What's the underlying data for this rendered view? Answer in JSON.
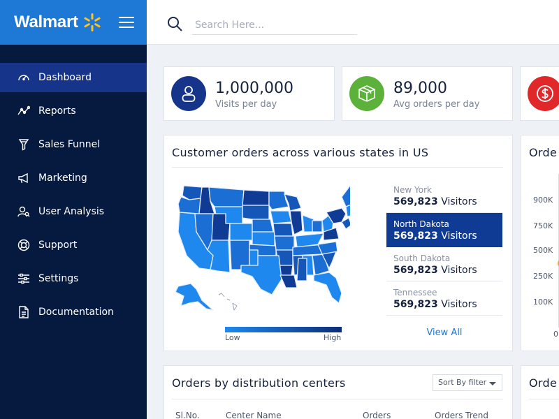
{
  "brand": {
    "name": "Walmart",
    "color": "#1e78d6",
    "spark_color": "#ffc220"
  },
  "search": {
    "placeholder": "Search Here..."
  },
  "nav": [
    {
      "label": "Dashboard",
      "icon": "speedometer-icon",
      "active": true
    },
    {
      "label": "Reports",
      "icon": "trend-line-icon"
    },
    {
      "label": "Sales Funnel",
      "icon": "funnel-icon"
    },
    {
      "label": "Marketing",
      "icon": "megaphone-icon"
    },
    {
      "label": "User Analysis",
      "icon": "user-search-icon"
    },
    {
      "label": "Support",
      "icon": "lifebuoy-icon"
    },
    {
      "label": "Settings",
      "icon": "sliders-icon"
    },
    {
      "label": "Documentation",
      "icon": "document-icon"
    }
  ],
  "stats": [
    {
      "value": "1,000,000",
      "label": "Visits per day",
      "icon": "user-icon",
      "color": "#16358a"
    },
    {
      "value": "89,000",
      "label": "Avg orders per day",
      "icon": "box-icon",
      "color": "#5bb13a"
    },
    {
      "value": "",
      "label": "",
      "icon": "dollar-icon",
      "color": "#e0282b"
    }
  ],
  "map_card": {
    "title": "Customer orders across various states in US",
    "states": [
      {
        "name": "New York",
        "count": "569,823",
        "unit": "Visitors"
      },
      {
        "name": "North Dakota",
        "count": "569,823",
        "unit": "Visitors",
        "active": true
      },
      {
        "name": "South Dakota",
        "count": "569,823",
        "unit": "Visitors"
      },
      {
        "name": "Tennessee",
        "count": "569,823",
        "unit": "Visitors"
      }
    ],
    "view_all": "View All",
    "legend": {
      "low": "Low",
      "high": "High",
      "low_color": "#1e88ee",
      "high_color": "#0c2d78"
    }
  },
  "right_card_top": {
    "title": "Orde",
    "y_ticks": [
      "900K",
      "750K",
      "500K",
      "250K",
      "100K",
      "0"
    ]
  },
  "distribution_card": {
    "title": "Orders by distribution centers",
    "sort_label": "Sort By filter",
    "columns": [
      "Sl.No.",
      "Center Name",
      "Orders",
      "Orders Trend"
    ]
  },
  "right_card_bottom": {
    "title": "Orde"
  }
}
